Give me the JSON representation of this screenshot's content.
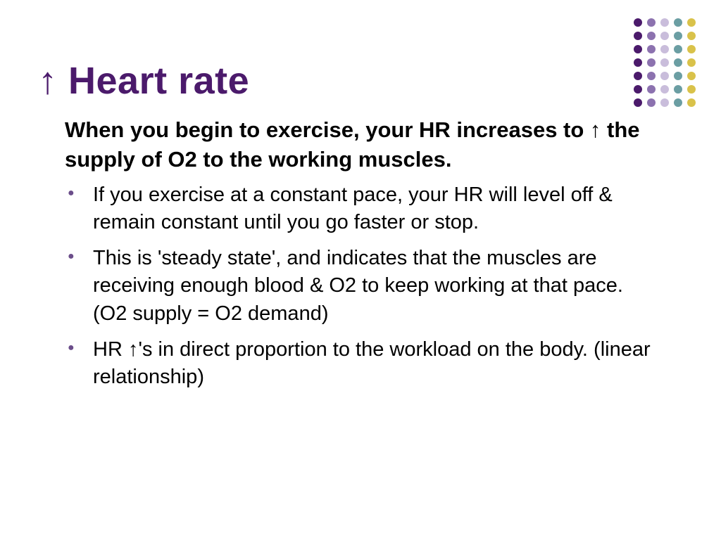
{
  "title": {
    "arrow": "↑",
    "text": " Heart rate",
    "color": "#4b1a6b"
  },
  "intro": "When you begin to exercise, your HR increases to ↑ the supply of O2 to the working muscles.",
  "intro_color": "#000000",
  "bullets": [
    "If you exercise at a constant pace, your HR will level off & remain constant until you go faster or stop.",
    "This is 'steady state', and indicates that the muscles are receiving enough blood & O2 to keep working at that pace. (O2 supply = O2 demand)",
    "HR ↑'s in direct proportion to the workload on the body. (linear relationship)"
  ],
  "bullet_marker_color": "#6b4d8a",
  "body_text_color": "#000000",
  "dot_grid": {
    "rows": 7,
    "cols": 5,
    "dot_size": 12,
    "gap": 7,
    "column_colors": [
      "#4b1a6b",
      "#8c72af",
      "#c9bddb",
      "#6b9ea3",
      "#d9c24a"
    ]
  },
  "background_color": "#ffffff"
}
